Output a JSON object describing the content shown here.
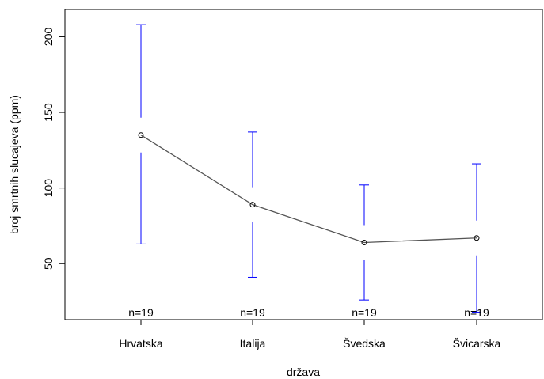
{
  "chart_data": {
    "type": "line",
    "title": "",
    "xlabel": "država",
    "ylabel": "broj smrtnih slucajeva (ppm)",
    "categories": [
      "Hrvatska",
      "Italija",
      "Švedska",
      "Švicarska"
    ],
    "means": [
      135,
      89,
      64,
      67
    ],
    "ci_upper": [
      208,
      137,
      102,
      116
    ],
    "ci_lower": [
      63,
      41,
      26,
      18
    ],
    "n_labels": [
      "n=19",
      "n=19",
      "n=19",
      "n=19"
    ],
    "ylim": [
      13,
      218
    ],
    "y_ticks": [
      50,
      100,
      150,
      200
    ],
    "grid": false,
    "colors": {
      "error_bar": "#0000ff",
      "line": "#555555",
      "point": "#000000"
    }
  }
}
